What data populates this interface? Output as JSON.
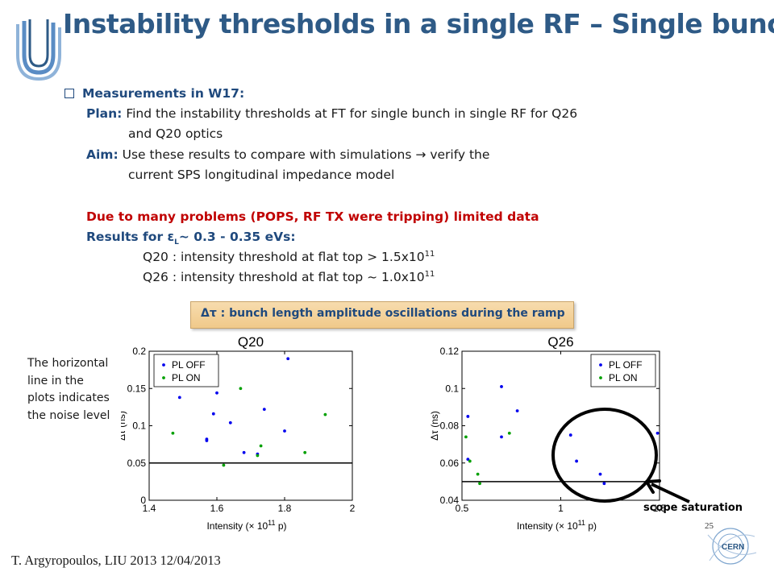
{
  "slide": {
    "title": "Instability thresholds in a single RF – Single bunch",
    "bullet": "Measurements in W17:",
    "plan_label": "Plan:",
    "plan_line1": "Find the instability thresholds at FT for single bunch in single RF for Q26",
    "plan_line2": "and Q20 optics",
    "aim_label": "Aim:",
    "aim_line1a": "Use these results to compare with simulations",
    "aim_arrow": "→",
    "aim_line1b": "verify the",
    "aim_line2": "current SPS longitudinal impedance model",
    "problems": "Due to many problems (POPS, RF TX were tripping)  limited data",
    "results_a": "Results for ε",
    "results_sub": "L",
    "results_b": "~ 0.3 - 0.35 eVs:",
    "q20_text": "Q20 : intensity threshold at flat top > 1.5x10",
    "q20_exp": "11",
    "q26_text": "Q26 : intensity threshold at flat top ~ 1.0x10",
    "q26_exp": "11",
    "banner": "Δτ : bunch length amplitude oscillations during the ramp",
    "note": "The horizontal line in the plots indicates the noise level",
    "scope_label": "scope saturation",
    "footer": "T. Argyropoulos, LIU 2013 12/04/2013",
    "page_number": "25"
  },
  "colors": {
    "title": "#2e5a86",
    "heading": "#1f497d",
    "alert": "#c00000",
    "pl_off": "#0000ee",
    "pl_on": "#00a000"
  },
  "chart_data": [
    {
      "type": "scatter",
      "title": "Q20",
      "xlabel": "Intensity (× 10",
      "xlabel_exp": "11",
      "xlabel_end": " p)",
      "ylabel": "Δτ (ns)",
      "xlim": [
        1.4,
        2.0
      ],
      "ylim": [
        0,
        0.2
      ],
      "xticks": [
        "1.4",
        "1.6",
        "1.8",
        "2"
      ],
      "yticks": [
        "0",
        "0.05",
        "0.1",
        "0.15",
        "0.2"
      ],
      "xtick_values": [
        1.4,
        1.6,
        1.8,
        2.0
      ],
      "ytick_values": [
        0,
        0.05,
        0.1,
        0.15,
        0.2
      ],
      "noise_level": 0.05,
      "legend_position": "top-left",
      "series": [
        {
          "name": "PL OFF",
          "points": [
            [
              1.49,
              0.138
            ],
            [
              1.57,
              0.082
            ],
            [
              1.57,
              0.08
            ],
            [
              1.59,
              0.116
            ],
            [
              1.6,
              0.144
            ],
            [
              1.64,
              0.104
            ],
            [
              1.68,
              0.064
            ],
            [
              1.72,
              0.062
            ],
            [
              1.74,
              0.122
            ],
            [
              1.8,
              0.093
            ],
            [
              1.81,
              0.19
            ]
          ]
        },
        {
          "name": "PL ON",
          "points": [
            [
              1.47,
              0.09
            ],
            [
              1.62,
              0.047
            ],
            [
              1.67,
              0.15
            ],
            [
              1.72,
              0.06
            ],
            [
              1.73,
              0.073
            ],
            [
              1.86,
              0.064
            ],
            [
              1.92,
              0.115
            ]
          ]
        }
      ]
    },
    {
      "type": "scatter",
      "title": "Q26",
      "xlabel": "Intensity (× 10",
      "xlabel_exp": "11",
      "xlabel_end": " p)",
      "ylabel": "Δτ (ns)",
      "xlim": [
        0.5,
        1.5
      ],
      "ylim": [
        0.04,
        0.12
      ],
      "xticks": [
        "0.5",
        "1",
        "1.5"
      ],
      "yticks": [
        "0.04",
        "0.06",
        "0.08",
        "0.1",
        "0.12"
      ],
      "xtick_values": [
        0.5,
        1.0,
        1.5
      ],
      "ytick_values": [
        0.04,
        0.06,
        0.08,
        0.1,
        0.12
      ],
      "noise_level": 0.05,
      "legend_position": "top-right",
      "series": [
        {
          "name": "PL OFF",
          "points": [
            [
              0.53,
              0.085
            ],
            [
              0.53,
              0.062
            ],
            [
              0.7,
              0.101
            ],
            [
              0.7,
              0.074
            ],
            [
              0.78,
              0.088
            ],
            [
              1.05,
              0.075
            ],
            [
              1.08,
              0.061
            ],
            [
              1.2,
              0.054
            ],
            [
              1.22,
              0.049
            ],
            [
              1.49,
              0.076
            ]
          ]
        },
        {
          "name": "PL ON",
          "points": [
            [
              0.52,
              0.074
            ],
            [
              0.54,
              0.061
            ],
            [
              0.58,
              0.054
            ],
            [
              0.59,
              0.049
            ],
            [
              0.74,
              0.076
            ]
          ]
        }
      ]
    }
  ]
}
